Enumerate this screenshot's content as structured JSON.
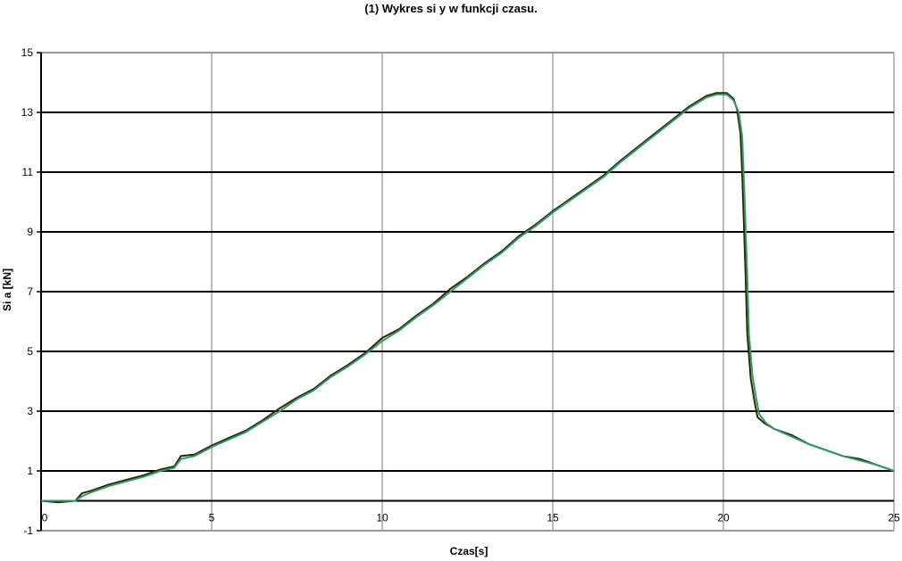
{
  "chart_data": {
    "type": "line",
    "title": "(1) Wykres si y w funkcji czasu.",
    "xlabel": "Czas[s]",
    "ylabel": "Si a [kN]",
    "xlim": [
      0,
      25
    ],
    "ylim": [
      -1,
      15
    ],
    "xticks": [
      0,
      5,
      10,
      15,
      20,
      25
    ],
    "yticks": [
      -1,
      1,
      3,
      5,
      7,
      9,
      11,
      13,
      15
    ],
    "grid": true,
    "legend": "none",
    "series": [
      {
        "color": "#2a2a00",
        "x": [
          0,
          0.5,
          1.0,
          1.2,
          1.5,
          2.0,
          2.5,
          3.0,
          3.5,
          3.9,
          4.1,
          4.5,
          5.0,
          5.5,
          6.0,
          6.5,
          7.0,
          7.5,
          8.0,
          8.5,
          9.0,
          9.5,
          10.0,
          10.5,
          11.0,
          11.5,
          12.0,
          12.5,
          13.0,
          13.5,
          14.0,
          14.5,
          15.0,
          15.5,
          16.0,
          16.5,
          17.0,
          17.5,
          18.0,
          18.5,
          19.0,
          19.5,
          19.8,
          20.1,
          20.3,
          20.4,
          20.5,
          20.55,
          20.6,
          20.65,
          20.7,
          20.8,
          20.9,
          21.0,
          21.2,
          21.5,
          22.0,
          22.5,
          23.0,
          23.5,
          24.0,
          24.5,
          25.0
        ],
        "y": [
          0,
          -0.05,
          0,
          0.25,
          0.35,
          0.55,
          0.7,
          0.85,
          1.05,
          1.15,
          1.5,
          1.55,
          1.85,
          2.1,
          2.35,
          2.7,
          3.1,
          3.45,
          3.75,
          4.2,
          4.55,
          4.95,
          5.45,
          5.75,
          6.2,
          6.6,
          7.1,
          7.5,
          7.95,
          8.35,
          8.85,
          9.25,
          9.7,
          10.1,
          10.5,
          10.9,
          11.4,
          11.85,
          12.3,
          12.75,
          13.2,
          13.55,
          13.65,
          13.65,
          13.45,
          13.1,
          12.3,
          11.0,
          9.3,
          7.6,
          5.6,
          4.1,
          3.4,
          2.8,
          2.6,
          2.4,
          2.2,
          1.9,
          1.7,
          1.5,
          1.4,
          1.2,
          1.0
        ]
      },
      {
        "color": "#2e9a6c",
        "x": [
          0,
          0.5,
          1.0,
          1.2,
          1.5,
          2.0,
          2.5,
          3.0,
          3.5,
          3.9,
          4.1,
          4.5,
          5.0,
          5.5,
          6.0,
          6.5,
          7.0,
          7.5,
          8.0,
          8.5,
          9.0,
          9.5,
          10.0,
          10.5,
          11.0,
          11.5,
          12.0,
          12.5,
          13.0,
          13.5,
          14.0,
          14.5,
          15.0,
          15.5,
          16.0,
          16.5,
          17.0,
          17.5,
          18.0,
          18.5,
          19.0,
          19.5,
          19.8,
          20.1,
          20.3,
          20.45,
          20.55,
          20.6,
          20.65,
          20.7,
          20.75,
          20.85,
          20.95,
          21.05,
          21.25,
          21.5,
          22.0,
          22.5,
          23.0,
          23.5,
          24.0,
          24.5,
          25.0
        ],
        "y": [
          0,
          0,
          0,
          0.15,
          0.3,
          0.5,
          0.65,
          0.8,
          1.0,
          1.1,
          1.4,
          1.5,
          1.8,
          2.05,
          2.3,
          2.65,
          3.0,
          3.4,
          3.7,
          4.15,
          4.5,
          4.9,
          5.35,
          5.7,
          6.15,
          6.55,
          7.0,
          7.45,
          7.9,
          8.3,
          8.8,
          9.2,
          9.65,
          10.05,
          10.45,
          10.85,
          11.35,
          11.8,
          12.25,
          12.7,
          13.15,
          13.5,
          13.6,
          13.6,
          13.4,
          13.0,
          12.2,
          10.8,
          9.2,
          7.5,
          5.6,
          4.2,
          3.5,
          2.9,
          2.6,
          2.4,
          2.15,
          1.9,
          1.7,
          1.5,
          1.35,
          1.2,
          1.0
        ]
      }
    ]
  }
}
